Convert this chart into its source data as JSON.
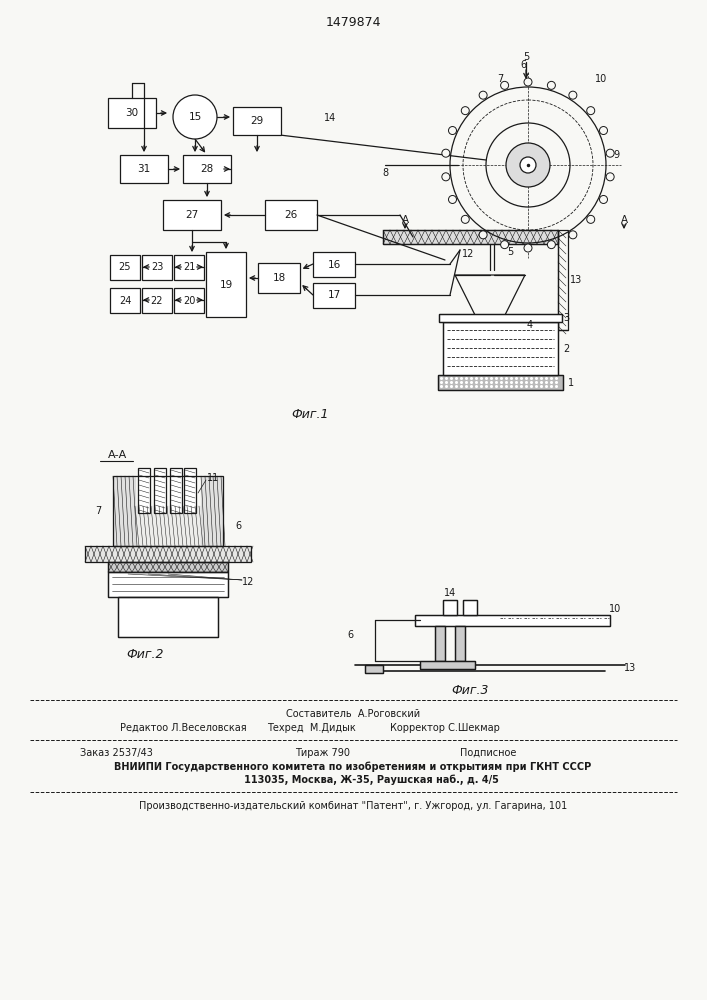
{
  "patent_number": "1479874",
  "bg": "#f8f8f5",
  "lc": "#1a1a1a",
  "fig_label1": "Фиг.1",
  "fig_label2": "Фиг.2",
  "fig_label3": "Фиг.3",
  "section_label": "А-А",
  "footer": [
    "Составитель  А.Роговский",
    "Редактоо Л.Веселовская",
    "Техред  М.Дидык",
    "Корректор С.Шекмар",
    "Заказ 2537/43",
    "Тираж 790",
    "Подписное",
    "ВНИИПИ Государственного комитета по изобретениям и открытиям при ГКНТ СССР",
    "           113035, Москва, Ж-35, Раушская наб., д. 4/5",
    "Производственно-издательский комбинат \"Патент\", г. Ужгород, ул. Гагарина, 101"
  ]
}
